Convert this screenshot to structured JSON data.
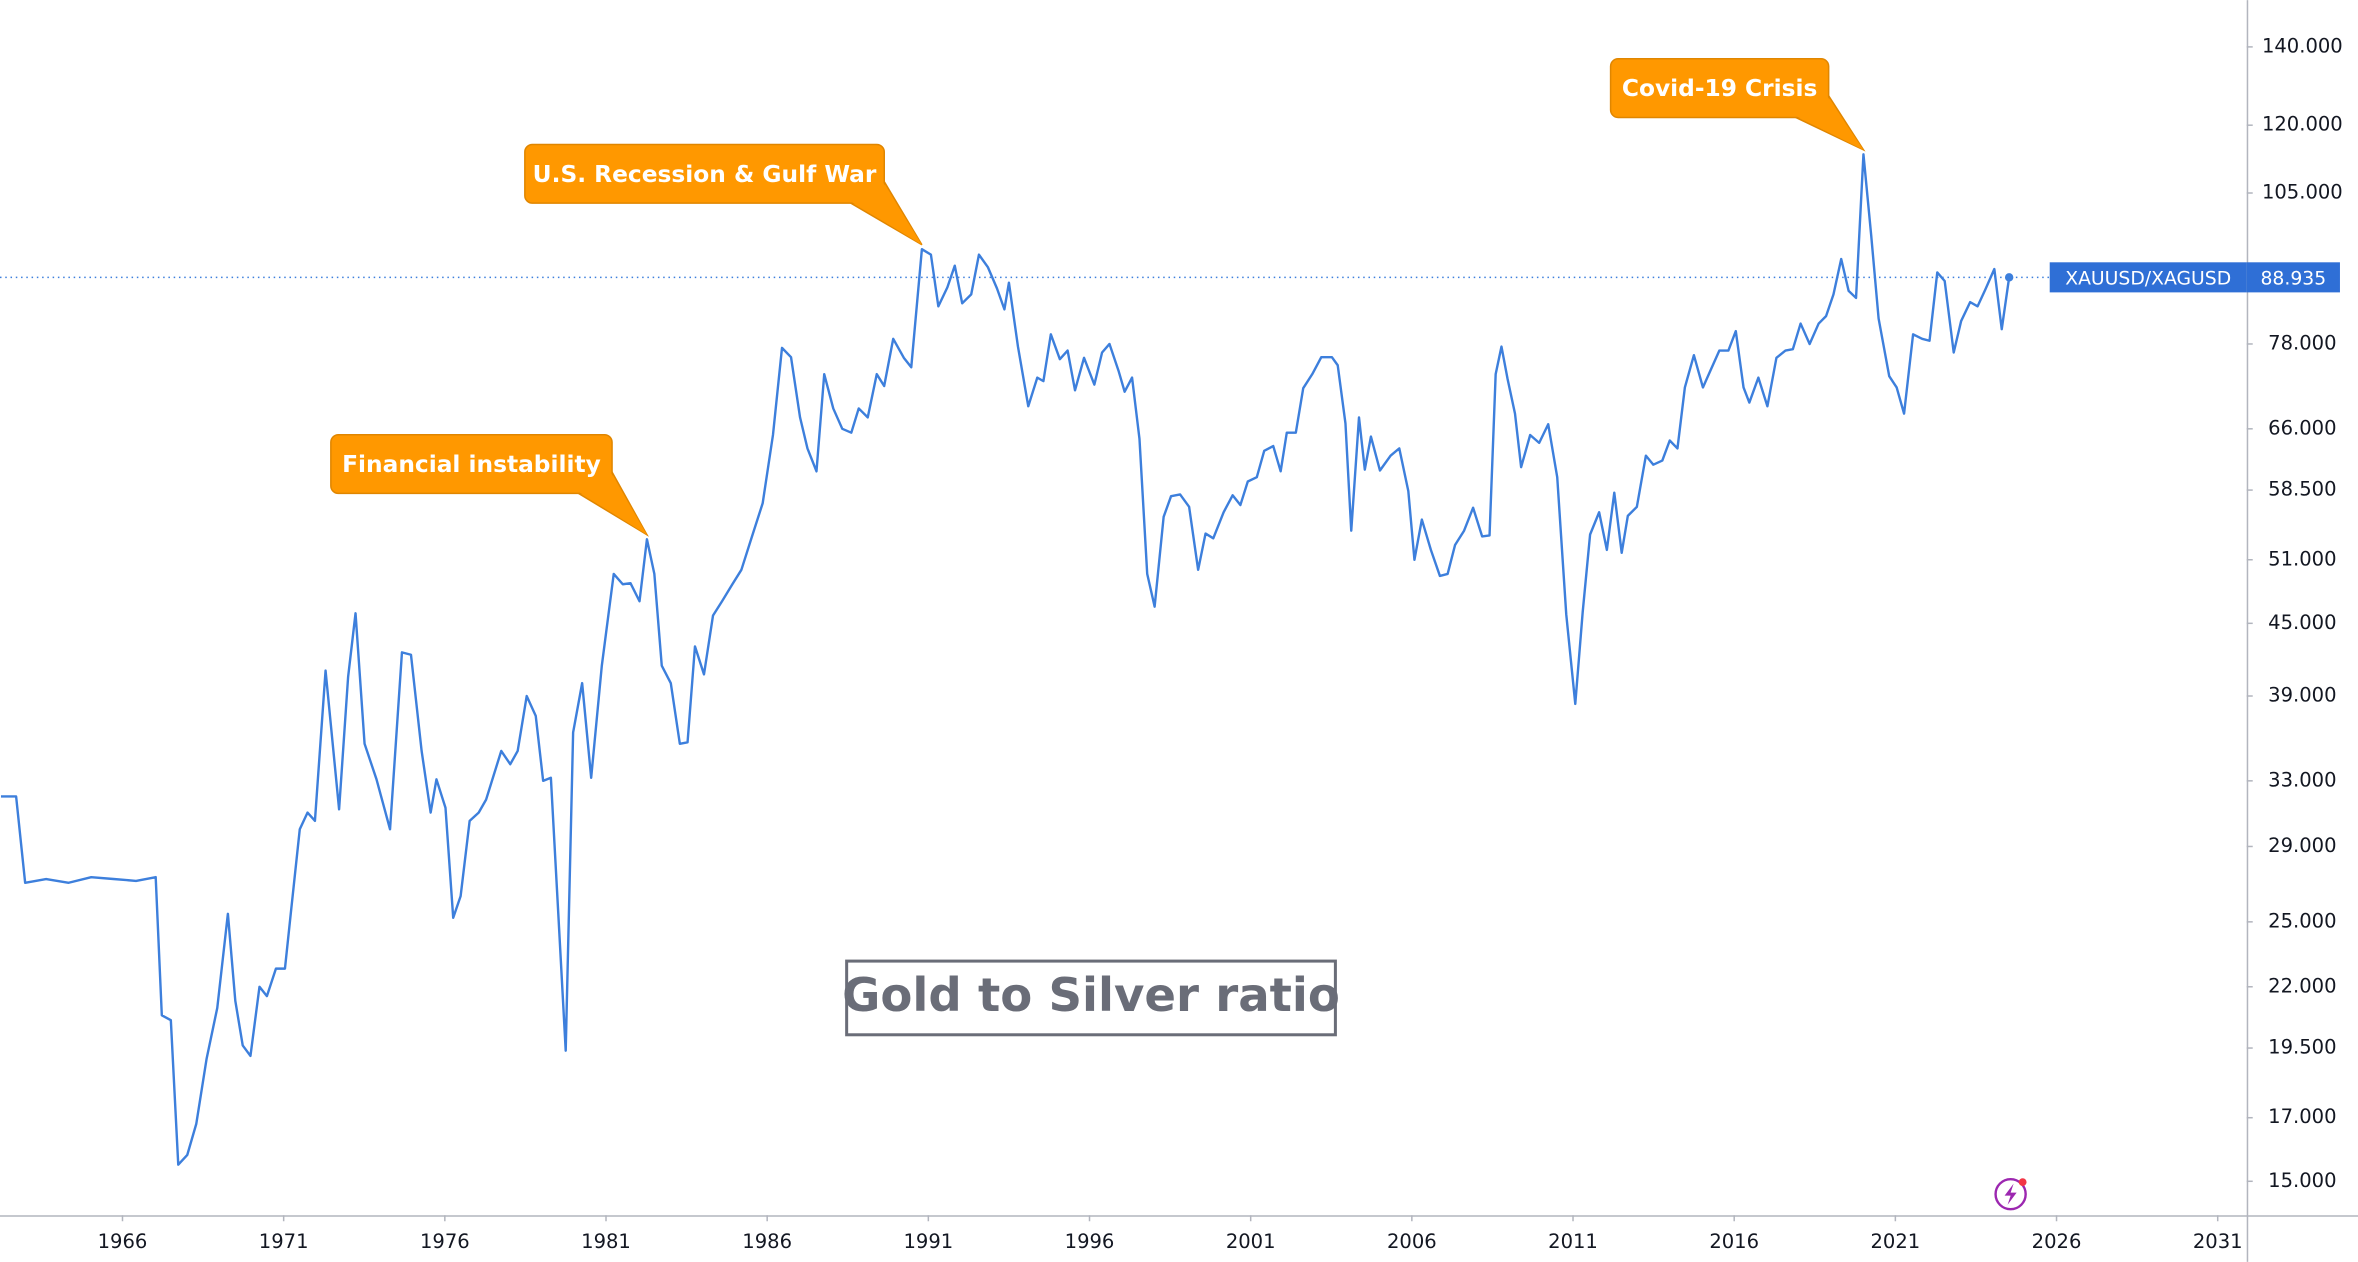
{
  "chart_data": {
    "type": "line",
    "title": "Gold to Silver ratio",
    "log_y": true,
    "grid": false,
    "annotations": [
      "Financial instability",
      "U.S. Recession & Gulf War",
      "Covid-19 Crisis"
    ],
    "annotation_color": "#ff9800",
    "xlim": [
      1962.2,
      2031.9
    ],
    "xticks": [
      1966,
      1971,
      1976,
      1981,
      1986,
      1991,
      1996,
      2001,
      2006,
      2011,
      2016,
      2021,
      2026,
      2031
    ],
    "ylim": [
      14.03,
      153.5
    ],
    "yticks": [
      {
        "value": 15,
        "label": "15.000"
      },
      {
        "value": 17,
        "label": "17.000"
      },
      {
        "value": 19.5,
        "label": "19.500"
      },
      {
        "value": 22,
        "label": "22.000"
      },
      {
        "value": 25,
        "label": "25.000"
      },
      {
        "value": 29,
        "label": "29.000"
      },
      {
        "value": 33,
        "label": "33.000"
      },
      {
        "value": 39,
        "label": "39.000"
      },
      {
        "value": 45,
        "label": "45.000"
      },
      {
        "value": 51,
        "label": "51.000"
      },
      {
        "value": 58.5,
        "label": "58.500"
      },
      {
        "value": 66,
        "label": "66.000"
      },
      {
        "value": 78,
        "label": "78.000"
      },
      {
        "value": 105,
        "label": "105.000"
      },
      {
        "value": 120,
        "label": "120.000"
      },
      {
        "value": 140,
        "label": "140.000"
      }
    ],
    "x": [
      1962.23,
      1962.7,
      1962.98,
      1963.63,
      1964.33,
      1965.03,
      1965.72,
      1966.42,
      1967.03,
      1967.22,
      1967.5,
      1967.73,
      1968.01,
      1968.29,
      1968.61,
      1968.94,
      1969.27,
      1969.5,
      1969.73,
      1969.97,
      1970.25,
      1970.48,
      1970.76,
      1971.04,
      1971.22,
      1971.5,
      1971.74,
      1971.97,
      1972.3,
      1972.72,
      1973.0,
      1973.23,
      1973.51,
      1973.88,
      1974.3,
      1974.67,
      1974.95,
      1975.28,
      1975.56,
      1975.74,
      1976.02,
      1976.26,
      1976.49,
      1976.77,
      1977.05,
      1977.28,
      1977.75,
      1978.03,
      1978.26,
      1978.54,
      1978.82,
      1979.05,
      1979.29,
      1979.52,
      1979.75,
      1979.98,
      1980.26,
      1980.54,
      1980.87,
      1981.24,
      1981.52,
      1981.76,
      1982.04,
      1982.27,
      1982.5,
      1982.73,
      1983.01,
      1983.29,
      1983.53,
      1983.76,
      1984.04,
      1984.32,
      1984.6,
      1984.92,
      1985.2,
      1985.53,
      1985.86,
      1986.18,
      1986.46,
      1986.74,
      1987.02,
      1987.25,
      1987.53,
      1987.77,
      1988.05,
      1988.33,
      1988.61,
      1988.84,
      1989.12,
      1989.4,
      1989.63,
      1989.91,
      1990.24,
      1990.47,
      1990.8,
      1991.08,
      1991.31,
      1991.59,
      1991.82,
      1992.05,
      1992.33,
      1992.57,
      1992.85,
      1993.13,
      1993.36,
      1993.5,
      1993.78,
      1994.1,
      1994.38,
      1994.57,
      1994.8,
      1995.08,
      1995.32,
      1995.55,
      1995.83,
      1996.15,
      1996.39,
      1996.62,
      1996.9,
      1997.09,
      1997.32,
      1997.55,
      1997.79,
      1998.02,
      1998.3,
      1998.53,
      1998.81,
      1999.09,
      1999.37,
      1999.6,
      1999.84,
      2000.16,
      2000.44,
      2000.68,
      2000.91,
      2001.19,
      2001.42,
      2001.7,
      2001.93,
      2002.12,
      2002.4,
      2002.63,
      2002.91,
      2003.19,
      2003.52,
      2003.7,
      2003.94,
      2004.12,
      2004.36,
      2004.54,
      2004.73,
      2005.01,
      2005.34,
      2005.61,
      2005.89,
      2006.08,
      2006.31,
      2006.59,
      2006.87,
      2007.11,
      2007.34,
      2007.62,
      2007.9,
      2008.18,
      2008.41,
      2008.6,
      2008.78,
      2008.97,
      2009.2,
      2009.39,
      2009.67,
      2009.95,
      2010.23,
      2010.51,
      2010.79,
      2011.07,
      2011.3,
      2011.53,
      2011.81,
      2012.05,
      2012.28,
      2012.51,
      2012.7,
      2012.98,
      2013.26,
      2013.49,
      2013.77,
      2014.0,
      2014.24,
      2014.47,
      2014.75,
      2015.03,
      2015.26,
      2015.54,
      2015.82,
      2016.05,
      2016.29,
      2016.47,
      2016.75,
      2017.03,
      2017.31,
      2017.59,
      2017.82,
      2018.06,
      2018.34,
      2018.62,
      2018.85,
      2019.08,
      2019.32,
      2019.55,
      2019.78,
      2020.01,
      2020.25,
      2020.48,
      2020.81,
      2021.04,
      2021.27,
      2021.55,
      2021.83,
      2022.06,
      2022.3,
      2022.53,
      2022.81,
      2023.04,
      2023.32,
      2023.55,
      2023.79,
      2024.07,
      2024.3,
      2024.53
    ],
    "series": [
      {
        "name": "XAUUSD/XAGUSD",
        "color": "#3d7fdc",
        "values": [
          32,
          32,
          27,
          27.2,
          27,
          27.3,
          27.2,
          27.1,
          27.3,
          20.8,
          20.6,
          15.5,
          15.8,
          16.8,
          19.1,
          21.1,
          25.4,
          21.4,
          19.6,
          19.2,
          22.0,
          21.6,
          22.8,
          22.8,
          25.4,
          30,
          31,
          30.5,
          41,
          31.2,
          40.5,
          45.9,
          35.5,
          33.1,
          30,
          42.5,
          42.3,
          35,
          31,
          33.1,
          31.3,
          25.2,
          26.3,
          30.5,
          31,
          31.8,
          35,
          34.1,
          35,
          39,
          37.5,
          33,
          33.2,
          25.4,
          19.4,
          36.3,
          40,
          33.2,
          41.4,
          49.6,
          48.6,
          48.7,
          47,
          53.1,
          49.6,
          41.4,
          40,
          35.5,
          35.6,
          43,
          40.7,
          45.7,
          47,
          48.6,
          50,
          53.4,
          57,
          65.2,
          77.4,
          76,
          67.5,
          63.5,
          60.7,
          73.5,
          68.7,
          66,
          65.5,
          68.7,
          67.5,
          73.5,
          71.8,
          78.8,
          75.9,
          74.5,
          94,
          93,
          84,
          87.2,
          91,
          84.5,
          86,
          93,
          90.7,
          87,
          83.5,
          88,
          77.6,
          69,
          73,
          72.5,
          79.5,
          75.7,
          77,
          71.2,
          75.9,
          72,
          76.7,
          78,
          74,
          71,
          73,
          64.7,
          49.6,
          46.5,
          55.5,
          57.8,
          58,
          56.6,
          50,
          53.7,
          53.2,
          56,
          57.9,
          56.8,
          59.5,
          60,
          63.2,
          63.8,
          60.7,
          65.5,
          65.5,
          71.5,
          73.5,
          76,
          76,
          74.8,
          66.7,
          54,
          67.5,
          60.9,
          65,
          60.8,
          62.6,
          63.5,
          58.4,
          51,
          55.2,
          52,
          49.4,
          49.6,
          52.5,
          54,
          56.5,
          53.4,
          53.5,
          73.5,
          77.6,
          72.8,
          68,
          61.2,
          65.2,
          64.2,
          66.6,
          60,
          45.8,
          38.4,
          46,
          53.6,
          56,
          52,
          58.2,
          51.7,
          55.6,
          56.6,
          62.6,
          61.5,
          62,
          64.5,
          63.5,
          71.6,
          76.3,
          71.6,
          74,
          77,
          77,
          80,
          71.6,
          69.5,
          73,
          69,
          75.9,
          77,
          77.2,
          81.2,
          78,
          81.2,
          82.4,
          86,
          92.2,
          86.6,
          85.4,
          113.3,
          96.6,
          82,
          73.2,
          71.6,
          68,
          79.5,
          78.8,
          78.5,
          89.8,
          88.3,
          76.7,
          81.6,
          84.7,
          84,
          86.8,
          90.4,
          80.3,
          88.935
        ]
      }
    ]
  }
}
